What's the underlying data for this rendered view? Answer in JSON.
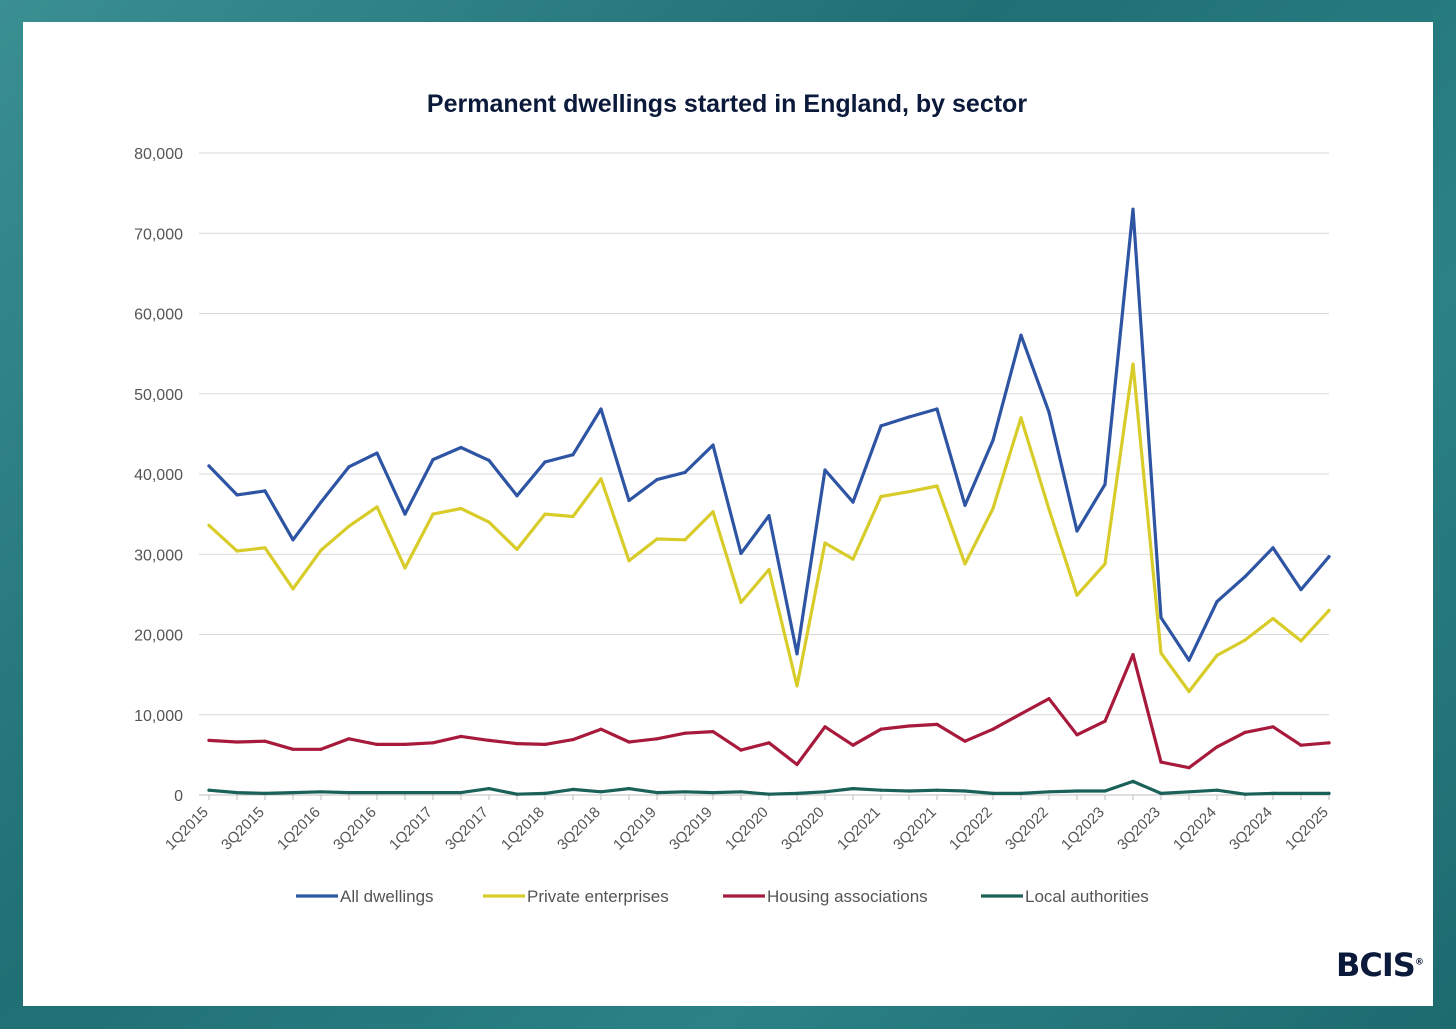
{
  "chart_data": {
    "type": "line",
    "title": "Permanent dwellings started in England, by sector",
    "xlabel": "",
    "ylabel": "",
    "ylim": [
      0,
      80000
    ],
    "yticks": [
      "0",
      "10,000",
      "20,000",
      "30,000",
      "40,000",
      "50,000",
      "60,000",
      "70,000",
      "80,000"
    ],
    "ytick_values": [
      0,
      10000,
      20000,
      30000,
      40000,
      50000,
      60000,
      70000,
      80000
    ],
    "grid": true,
    "legend": "bottom",
    "categories": [
      "1Q2015",
      "2Q2015",
      "3Q2015",
      "4Q2015",
      "1Q2016",
      "2Q2016",
      "3Q2016",
      "4Q2016",
      "1Q2017",
      "2Q2017",
      "3Q2017",
      "4Q2017",
      "1Q2018",
      "2Q2018",
      "3Q2018",
      "4Q2018",
      "1Q2019",
      "2Q2019",
      "3Q2019",
      "4Q2019",
      "1Q2020",
      "2Q2020",
      "3Q2020",
      "4Q2020",
      "1Q2021",
      "2Q2021",
      "3Q2021",
      "4Q2021",
      "1Q2022",
      "2Q2022",
      "3Q2022",
      "4Q2022",
      "1Q2023",
      "2Q2023",
      "3Q2023",
      "4Q2023",
      "1Q2024",
      "2Q2024",
      "3Q2024",
      "4Q2024",
      "1Q2025"
    ],
    "xtick_labels": [
      "1Q2015",
      "3Q2015",
      "1Q2016",
      "3Q2016",
      "1Q2017",
      "3Q2017",
      "1Q2018",
      "3Q2018",
      "1Q2019",
      "3Q2019",
      "1Q2020",
      "3Q2020",
      "1Q2021",
      "3Q2021",
      "1Q2022",
      "3Q2022",
      "1Q2023",
      "3Q2023",
      "1Q2024",
      "3Q2024",
      "1Q2025"
    ],
    "series": [
      {
        "name": "All dwellings",
        "color": "#2e54a4",
        "values": [
          41000,
          37400,
          37900,
          31800,
          36500,
          40900,
          42600,
          35000,
          41800,
          43300,
          41700,
          37300,
          41500,
          42400,
          48100,
          36700,
          39300,
          40200,
          43600,
          30100,
          34800,
          17600,
          40500,
          36500,
          46000,
          47100,
          48100,
          36100,
          44200,
          57300,
          47700,
          32900,
          38700,
          73000,
          22100,
          16800,
          24100,
          27200,
          30800,
          25600,
          29700
        ]
      },
      {
        "name": "Private enterprises",
        "color": "#d8cc2a",
        "values": [
          33600,
          30400,
          30800,
          25700,
          30500,
          33500,
          35900,
          28300,
          35000,
          35700,
          34000,
          30600,
          35000,
          34700,
          39400,
          29200,
          31900,
          31800,
          35300,
          24000,
          28100,
          13600,
          31400,
          29400,
          37200,
          37800,
          38500,
          28800,
          35700,
          47000,
          35600,
          24900,
          28800,
          53700,
          17700,
          12900,
          17400,
          19300,
          22000,
          19200,
          23000
        ]
      },
      {
        "name": "Housing associations",
        "color": "#a81a3c",
        "values": [
          6800,
          6600,
          6700,
          5700,
          5700,
          7000,
          6300,
          6300,
          6500,
          7300,
          6800,
          6400,
          6300,
          6900,
          8200,
          6600,
          7000,
          7700,
          7900,
          5600,
          6500,
          3800,
          8500,
          6200,
          8200,
          8600,
          8800,
          6700,
          8200,
          10100,
          12000,
          7500,
          9200,
          17500,
          4100,
          3400,
          6000,
          7800,
          8500,
          6200,
          6500
        ]
      },
      {
        "name": "Local authorities",
        "color": "#1a6158",
        "values": [
          600,
          300,
          200,
          300,
          400,
          300,
          300,
          300,
          300,
          300,
          800,
          100,
          200,
          700,
          400,
          800,
          300,
          400,
          300,
          400,
          100,
          200,
          400,
          800,
          600,
          500,
          600,
          500,
          200,
          200,
          400,
          500,
          500,
          1700,
          200,
          400,
          600,
          100,
          200,
          200,
          200
        ]
      }
    ]
  },
  "brand": {
    "logo_text": "BCIS",
    "logo_mark": "®"
  }
}
